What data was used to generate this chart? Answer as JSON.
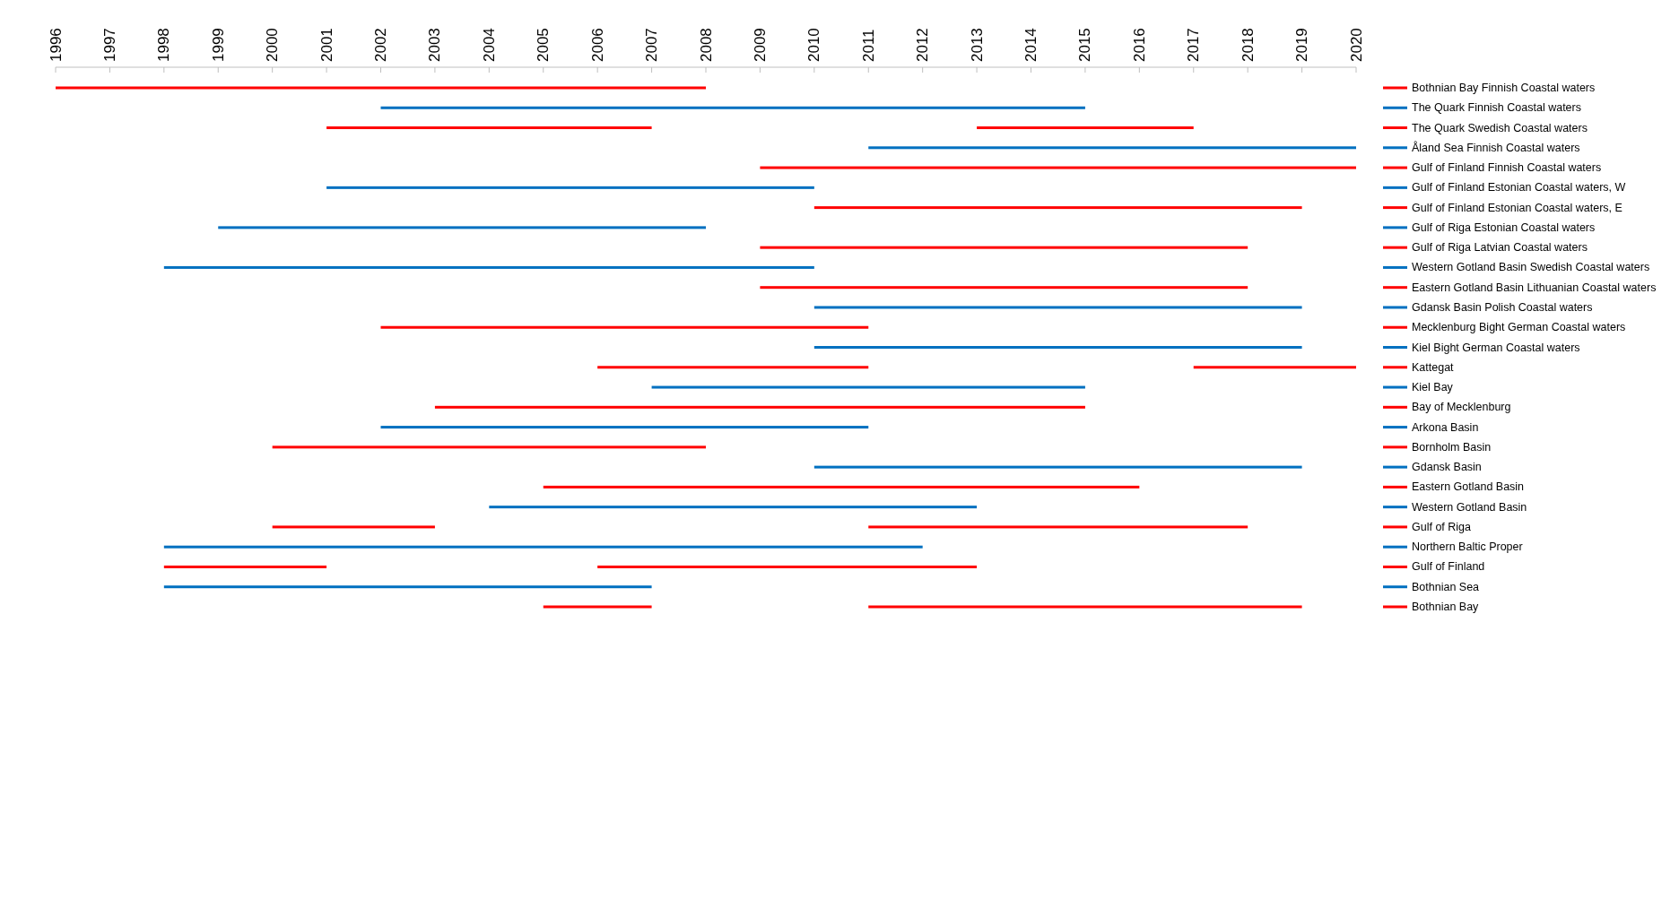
{
  "chart_data": {
    "type": "bar",
    "orientation": "horizontal",
    "xlim": [
      1996,
      2020
    ],
    "xticks": [
      1996,
      1997,
      1998,
      1999,
      2000,
      2001,
      2002,
      2003,
      2004,
      2005,
      2006,
      2007,
      2008,
      2009,
      2010,
      2011,
      2012,
      2013,
      2014,
      2015,
      2016,
      2017,
      2018,
      2019,
      2020
    ],
    "categories": [
      "Bothnian Bay Finnish Coastal waters",
      "The Quark Finnish Coastal waters",
      "The Quark Swedish Coastal waters",
      "Åland Sea Finnish Coastal waters",
      "Gulf of Finland Finnish Coastal waters",
      "Gulf of Finland Estonian Coastal waters, W",
      "Gulf of Finland Estonian Coastal waters, E",
      "Gulf of Riga Estonian Coastal waters",
      "Gulf of Riga Latvian Coastal waters",
      "Western Gotland Basin Swedish Coastal waters",
      "Eastern Gotland Basin Lithuanian Coastal waters",
      "Gdansk Basin Polish Coastal waters",
      "Mecklenburg Bight German Coastal waters",
      "Kiel Bight German Coastal waters",
      "Kattegat",
      "Kiel Bay",
      "Bay of Mecklenburg",
      "Arkona Basin",
      "Bornholm Basin",
      "Gdansk Basin",
      "Eastern Gotland Basin",
      "Western Gotland Basin",
      "Gulf of Riga",
      "Northern Baltic Proper",
      "Gulf of Finland",
      "Bothnian Sea",
      "Bothnian Bay"
    ],
    "series": [
      {
        "colors": [
          "#ff0000",
          "#0070c0",
          "#ff0000",
          "#0070c0",
          "#ff0000",
          "#0070c0",
          "#ff0000",
          "#0070c0",
          "#ff0000",
          "#0070c0",
          "#ff0000",
          "#0070c0",
          "#ff0000",
          "#0070c0",
          "#ff0000",
          "#0070c0",
          "#ff0000",
          "#0070c0",
          "#ff0000",
          "#0070c0",
          "#ff0000",
          "#0070c0",
          "#ff0000",
          "#0070c0",
          "#ff0000",
          "#0070c0",
          "#ff0000"
        ],
        "base": [
          1996,
          2002,
          2001,
          2011,
          2009,
          2001,
          2010,
          1999,
          2009,
          1998,
          2009,
          2010,
          2002,
          2010,
          2006,
          2007,
          2003,
          2002,
          2000,
          2010,
          2005,
          2004,
          2000,
          1998,
          1998,
          1998,
          2005
        ],
        "values": [
          12,
          13,
          6,
          9,
          11,
          9,
          9,
          9,
          9,
          12,
          9,
          9,
          9,
          9,
          5,
          8,
          12,
          9,
          8,
          9,
          11,
          9,
          3,
          14,
          3,
          9,
          2
        ]
      },
      {
        "colors": [
          null,
          null,
          "#ff0000",
          null,
          null,
          null,
          null,
          null,
          null,
          null,
          null,
          null,
          null,
          null,
          "#ff0000",
          null,
          null,
          null,
          null,
          null,
          null,
          null,
          "#ff0000",
          null,
          "#ff0000",
          null,
          "#ff0000"
        ],
        "base": [
          null,
          null,
          2013,
          null,
          null,
          null,
          null,
          null,
          null,
          null,
          null,
          null,
          null,
          null,
          2017,
          null,
          null,
          null,
          null,
          null,
          null,
          null,
          2011,
          null,
          2006,
          null,
          2011
        ],
        "values": [
          null,
          null,
          4,
          null,
          null,
          null,
          null,
          null,
          null,
          null,
          null,
          null,
          null,
          null,
          3,
          null,
          null,
          null,
          null,
          null,
          null,
          null,
          7,
          null,
          7,
          null,
          8
        ]
      }
    ]
  }
}
